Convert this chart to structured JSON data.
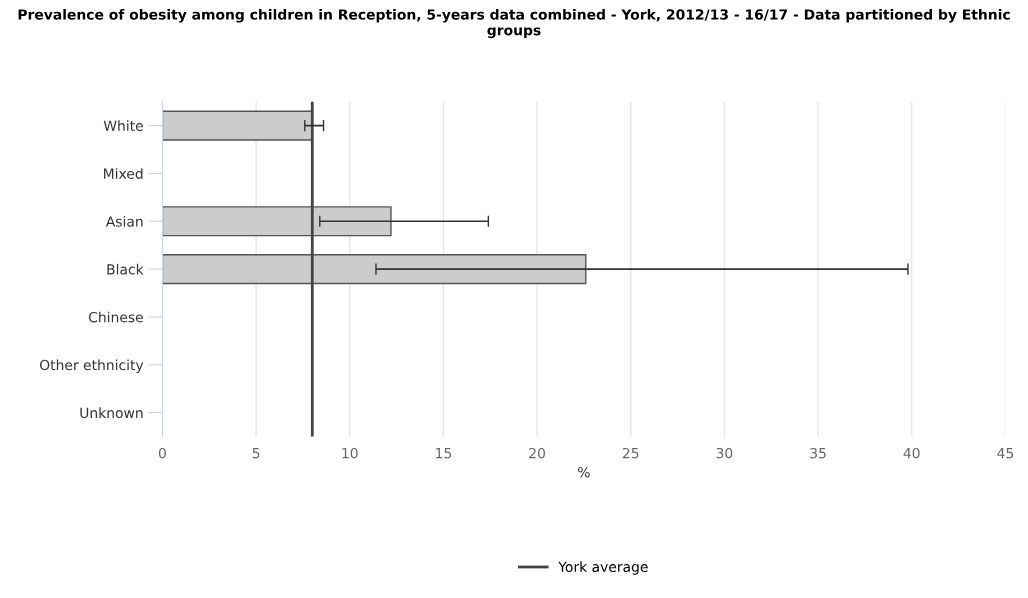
{
  "chart_data": {
    "type": "bar",
    "orientation": "horizontal",
    "title": "Prevalence of obesity among children in Reception, 5-years data combined - York, 2012/13 - 16/17 - Data partitioned by Ethnic groups",
    "xlabel": "%",
    "categories": [
      "White",
      "Mixed",
      "Asian",
      "Black",
      "Chinese",
      "Other ethnicity",
      "Unknown"
    ],
    "values": [
      8.0,
      null,
      12.2,
      22.6,
      null,
      null,
      null
    ],
    "errors": [
      [
        7.6,
        8.6
      ],
      null,
      [
        8.4,
        17.4
      ],
      [
        11.4,
        39.8
      ],
      null,
      null,
      null
    ],
    "color": "#cccccc",
    "xlim": [
      0,
      45
    ],
    "xticks": [
      0,
      5,
      10,
      15,
      20,
      25,
      30,
      35,
      40,
      45
    ],
    "ref_lines": [
      {
        "axis": "x",
        "value": 8.0,
        "label": "York average",
        "color": "#444444"
      }
    ],
    "grid": "x",
    "legend": "bottom"
  }
}
